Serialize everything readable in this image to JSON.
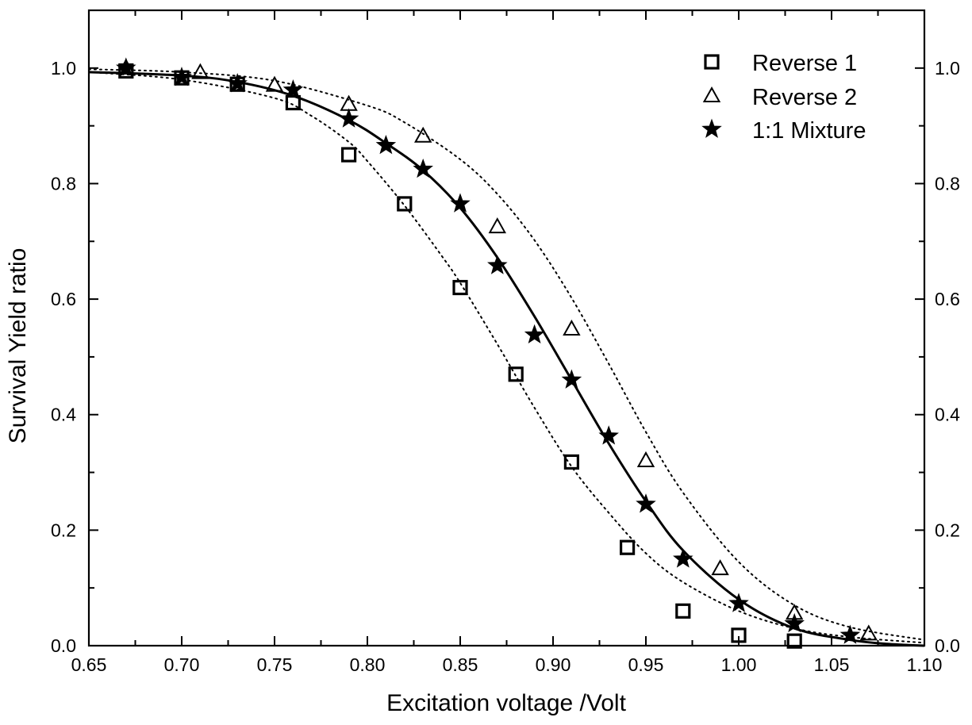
{
  "chart_data": {
    "type": "scatter",
    "title": "",
    "xlabel": "Excitation voltage /Volt",
    "ylabel": "Survival Yield ratio",
    "xlim": [
      0.65,
      1.1
    ],
    "ylim": [
      0.0,
      1.1
    ],
    "x_ticks": [
      "0.65",
      "0.70",
      "0.75",
      "0.80",
      "0.85",
      "0.90",
      "0.95",
      "1.00",
      "1.05",
      "1.10"
    ],
    "y_ticks": [
      "0.0",
      "0.2",
      "0.4",
      "0.6",
      "0.8",
      "1.0"
    ],
    "right_axis_ticks": [
      "0.0",
      "0.2",
      "0.4",
      "0.6",
      "0.8",
      "1.0"
    ],
    "grid": false,
    "legend_position": "top-right",
    "series": [
      {
        "name": "Reverse 1",
        "marker": "square",
        "x": [
          0.67,
          0.7,
          0.73,
          0.76,
          0.79,
          0.82,
          0.85,
          0.88,
          0.91,
          0.94,
          0.97,
          1.0,
          1.03
        ],
        "y": [
          0.995,
          0.983,
          0.972,
          0.94,
          0.85,
          0.765,
          0.62,
          0.47,
          0.318,
          0.17,
          0.06,
          0.018,
          0.008
        ]
      },
      {
        "name": "Reverse 2",
        "marker": "triangle",
        "x": [
          0.67,
          0.71,
          0.75,
          0.79,
          0.83,
          0.87,
          0.91,
          0.95,
          0.99,
          1.03,
          1.07
        ],
        "y": [
          1.0,
          0.992,
          0.97,
          0.937,
          0.882,
          0.725,
          0.548,
          0.32,
          0.133,
          0.056,
          0.02
        ]
      },
      {
        "name": "1:1 Mixture",
        "marker": "star",
        "x": [
          0.67,
          0.7,
          0.73,
          0.76,
          0.79,
          0.81,
          0.83,
          0.85,
          0.87,
          0.89,
          0.91,
          0.93,
          0.95,
          0.97,
          1.0,
          1.03,
          1.06
        ],
        "y": [
          1.0,
          0.984,
          0.973,
          0.962,
          0.912,
          0.866,
          0.825,
          0.765,
          0.658,
          0.538,
          0.46,
          0.363,
          0.245,
          0.15,
          0.073,
          0.038,
          0.018
        ]
      }
    ],
    "fit_curves": [
      {
        "series": "Reverse 1",
        "style": "dotted",
        "x": [
          0.65,
          0.7,
          0.75,
          0.77,
          0.79,
          0.8,
          0.82,
          0.84,
          0.85,
          0.87,
          0.89,
          0.91,
          0.93,
          0.95,
          0.97,
          1.0,
          1.03,
          1.06,
          1.1
        ],
        "y": [
          0.993,
          0.98,
          0.948,
          0.917,
          0.872,
          0.839,
          0.762,
          0.675,
          0.628,
          0.522,
          0.412,
          0.31,
          0.23,
          0.16,
          0.11,
          0.06,
          0.03,
          0.015,
          0.005
        ]
      },
      {
        "series": "Reverse 2",
        "style": "dotted",
        "x": [
          0.65,
          0.7,
          0.75,
          0.8,
          0.82,
          0.85,
          0.87,
          0.89,
          0.91,
          0.93,
          0.95,
          0.97,
          1.0,
          1.03,
          1.06,
          1.1
        ],
        "y": [
          0.998,
          0.993,
          0.978,
          0.935,
          0.906,
          0.842,
          0.782,
          0.702,
          0.602,
          0.488,
          0.37,
          0.265,
          0.145,
          0.07,
          0.032,
          0.01
        ]
      },
      {
        "series": "1:1 Mixture",
        "style": "solid",
        "x": [
          0.65,
          0.7,
          0.73,
          0.76,
          0.79,
          0.81,
          0.83,
          0.85,
          0.87,
          0.89,
          0.91,
          0.93,
          0.95,
          0.97,
          1.0,
          1.03,
          1.06,
          1.08,
          1.1
        ],
        "y": [
          0.993,
          0.987,
          0.976,
          0.952,
          0.91,
          0.87,
          0.823,
          0.758,
          0.672,
          0.57,
          0.46,
          0.35,
          0.25,
          0.165,
          0.08,
          0.03,
          0.01,
          0.003,
          0.0
        ]
      }
    ]
  }
}
